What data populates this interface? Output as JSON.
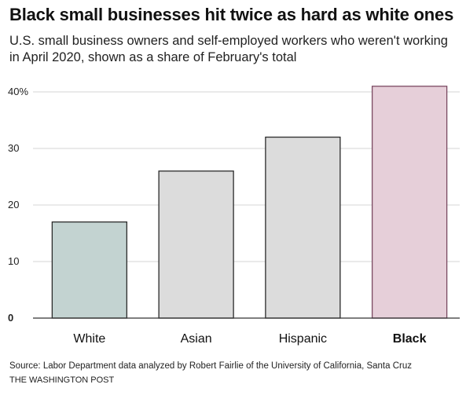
{
  "header": {
    "title": "Black small businesses hit twice as hard as white ones",
    "subtitle": "U.S. small business owners and self-employed workers who weren't working in April 2020, shown as a share of February's total"
  },
  "chart_data": {
    "type": "bar",
    "categories": [
      "White",
      "Asian",
      "Hispanic",
      "Black"
    ],
    "values": [
      17,
      26,
      32,
      41
    ],
    "ylim": [
      0,
      40
    ],
    "yticks": [
      0,
      10,
      20,
      30,
      40
    ],
    "ytick_labels": [
      "0",
      "10",
      "20",
      "30",
      "40%"
    ],
    "grid": true,
    "highlight_category": "Black",
    "colors": {
      "White": "#c3d3d1",
      "Asian": "#dcdcdc",
      "Hispanic": "#dcdcdc",
      "Black": "#e6cfd9"
    },
    "stroke_colors": {
      "White": "#2b2b2b",
      "Asian": "#2b2b2b",
      "Hispanic": "#2b2b2b",
      "Black": "#7a4a62"
    }
  },
  "footer": {
    "source": "Source: Labor Department data analyzed by Robert Fairlie of the University of California, Santa Cruz",
    "credit": "THE WASHINGTON POST"
  }
}
